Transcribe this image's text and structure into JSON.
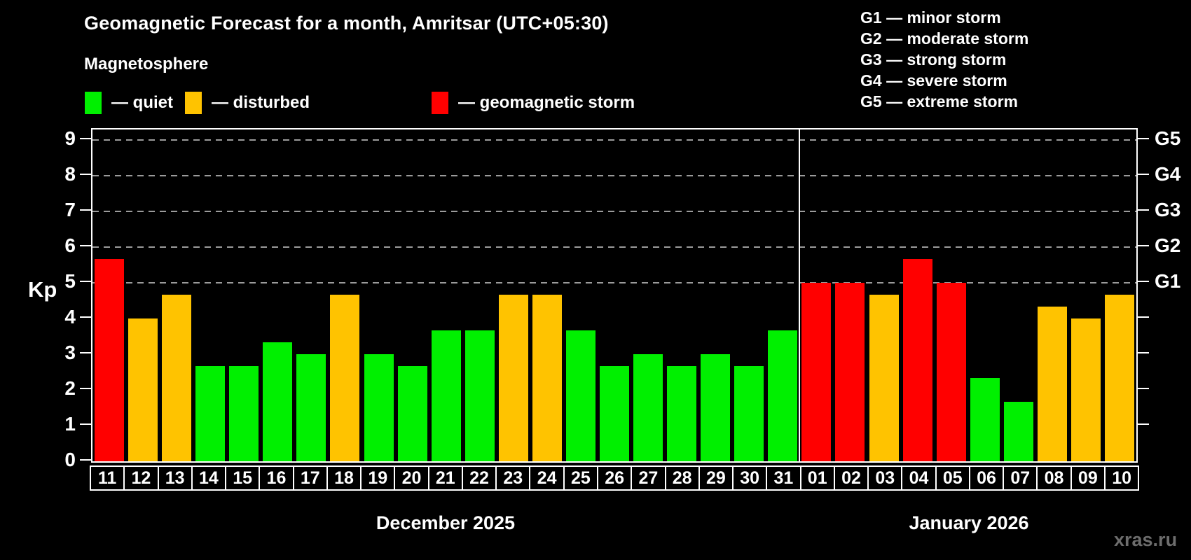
{
  "title": "Geomagnetic Forecast for a month, Amritsar (UTC+05:30)",
  "subtitle": "Magnetosphere",
  "legend": {
    "quiet_label": "— quiet",
    "disturbed_label": "— disturbed",
    "storm_label": "— geomagnetic storm"
  },
  "g_legend": [
    "G1 — minor storm",
    "G2 — moderate storm",
    "G3 — strong storm",
    "G4 — severe storm",
    "G5 — extreme storm"
  ],
  "colors": {
    "quiet": "#00f000",
    "disturbed": "#ffc300",
    "storm": "#ff0000",
    "background": "#000000",
    "axis": "#ffffff",
    "gridline": "#9b9b9b",
    "watermark_gray": "#6d6d6d"
  },
  "watermark": "xras.ru",
  "chart_data": {
    "type": "bar",
    "title": "Geomagnetic Forecast for a month, Amritsar (UTC+05:30)",
    "xlabel": "",
    "ylabel": "Kp",
    "ylim": [
      0,
      9
    ],
    "grid": "dashed horizontal at Kp 5-9 only",
    "legend_position": "top",
    "yticks": [
      "0",
      "1",
      "2",
      "3",
      "4",
      "5",
      "6",
      "7",
      "8",
      "9"
    ],
    "gridlines_at": [
      5,
      6,
      7,
      8,
      9
    ],
    "right_axis_labels": [
      {
        "kp": 5,
        "label": "G1"
      },
      {
        "kp": 6,
        "label": "G2"
      },
      {
        "kp": 7,
        "label": "G3"
      },
      {
        "kp": 8,
        "label": "G4"
      },
      {
        "kp": 9,
        "label": "G5"
      }
    ],
    "series": [
      {
        "name": "December 2025",
        "key": "dec",
        "points": [
          {
            "day": "11",
            "kp": 5.67,
            "status": "storm"
          },
          {
            "day": "12",
            "kp": 4.0,
            "status": "disturbed"
          },
          {
            "day": "13",
            "kp": 4.67,
            "status": "disturbed"
          },
          {
            "day": "14",
            "kp": 2.67,
            "status": "quiet"
          },
          {
            "day": "15",
            "kp": 2.67,
            "status": "quiet"
          },
          {
            "day": "16",
            "kp": 3.33,
            "status": "quiet"
          },
          {
            "day": "17",
            "kp": 3.0,
            "status": "quiet"
          },
          {
            "day": "18",
            "kp": 4.67,
            "status": "disturbed"
          },
          {
            "day": "19",
            "kp": 3.0,
            "status": "quiet"
          },
          {
            "day": "20",
            "kp": 2.67,
            "status": "quiet"
          },
          {
            "day": "21",
            "kp": 3.67,
            "status": "quiet"
          },
          {
            "day": "22",
            "kp": 3.67,
            "status": "quiet"
          },
          {
            "day": "23",
            "kp": 4.67,
            "status": "disturbed"
          },
          {
            "day": "24",
            "kp": 4.67,
            "status": "disturbed"
          },
          {
            "day": "25",
            "kp": 3.67,
            "status": "quiet"
          },
          {
            "day": "26",
            "kp": 2.67,
            "status": "quiet"
          },
          {
            "day": "27",
            "kp": 3.0,
            "status": "quiet"
          },
          {
            "day": "28",
            "kp": 2.67,
            "status": "quiet"
          },
          {
            "day": "29",
            "kp": 3.0,
            "status": "quiet"
          },
          {
            "day": "30",
            "kp": 2.67,
            "status": "quiet"
          },
          {
            "day": "31",
            "kp": 3.67,
            "status": "quiet"
          }
        ]
      },
      {
        "name": "January 2026",
        "key": "jan",
        "points": [
          {
            "day": "01",
            "kp": 5.0,
            "status": "storm"
          },
          {
            "day": "02",
            "kp": 5.0,
            "status": "storm"
          },
          {
            "day": "03",
            "kp": 4.67,
            "status": "disturbed"
          },
          {
            "day": "04",
            "kp": 5.67,
            "status": "storm"
          },
          {
            "day": "05",
            "kp": 5.0,
            "status": "storm"
          },
          {
            "day": "06",
            "kp": 2.33,
            "status": "quiet"
          },
          {
            "day": "07",
            "kp": 1.67,
            "status": "quiet"
          },
          {
            "day": "08",
            "kp": 4.33,
            "status": "disturbed"
          },
          {
            "day": "09",
            "kp": 4.0,
            "status": "disturbed"
          },
          {
            "day": "10",
            "kp": 4.67,
            "status": "disturbed"
          }
        ]
      }
    ]
  }
}
